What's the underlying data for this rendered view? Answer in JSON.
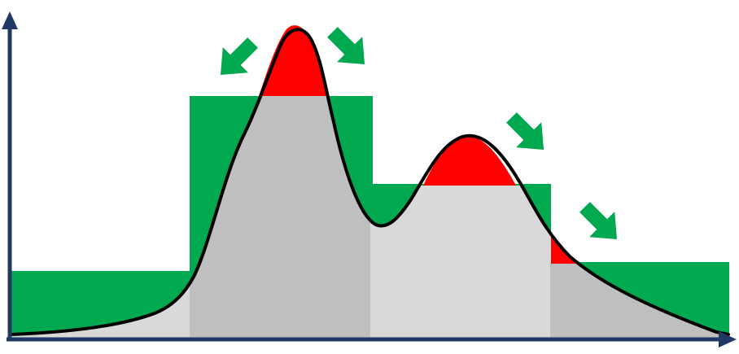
{
  "colors": {
    "envelope": "#00a84f",
    "excess": "#ff0000",
    "under_light": "#d9d9d9",
    "under_dark": "#bfbfbf",
    "axes": "#1f3864",
    "curve": "#000000"
  },
  "segments": [
    {
      "name": "segment-1",
      "shade": "light",
      "has_excess": false
    },
    {
      "name": "segment-2",
      "shade": "dark",
      "has_excess": true
    },
    {
      "name": "segment-3",
      "shade": "light",
      "has_excess": true
    },
    {
      "name": "segment-4",
      "shade": "dark",
      "has_excess": true
    }
  ],
  "arrow_count": 4
}
